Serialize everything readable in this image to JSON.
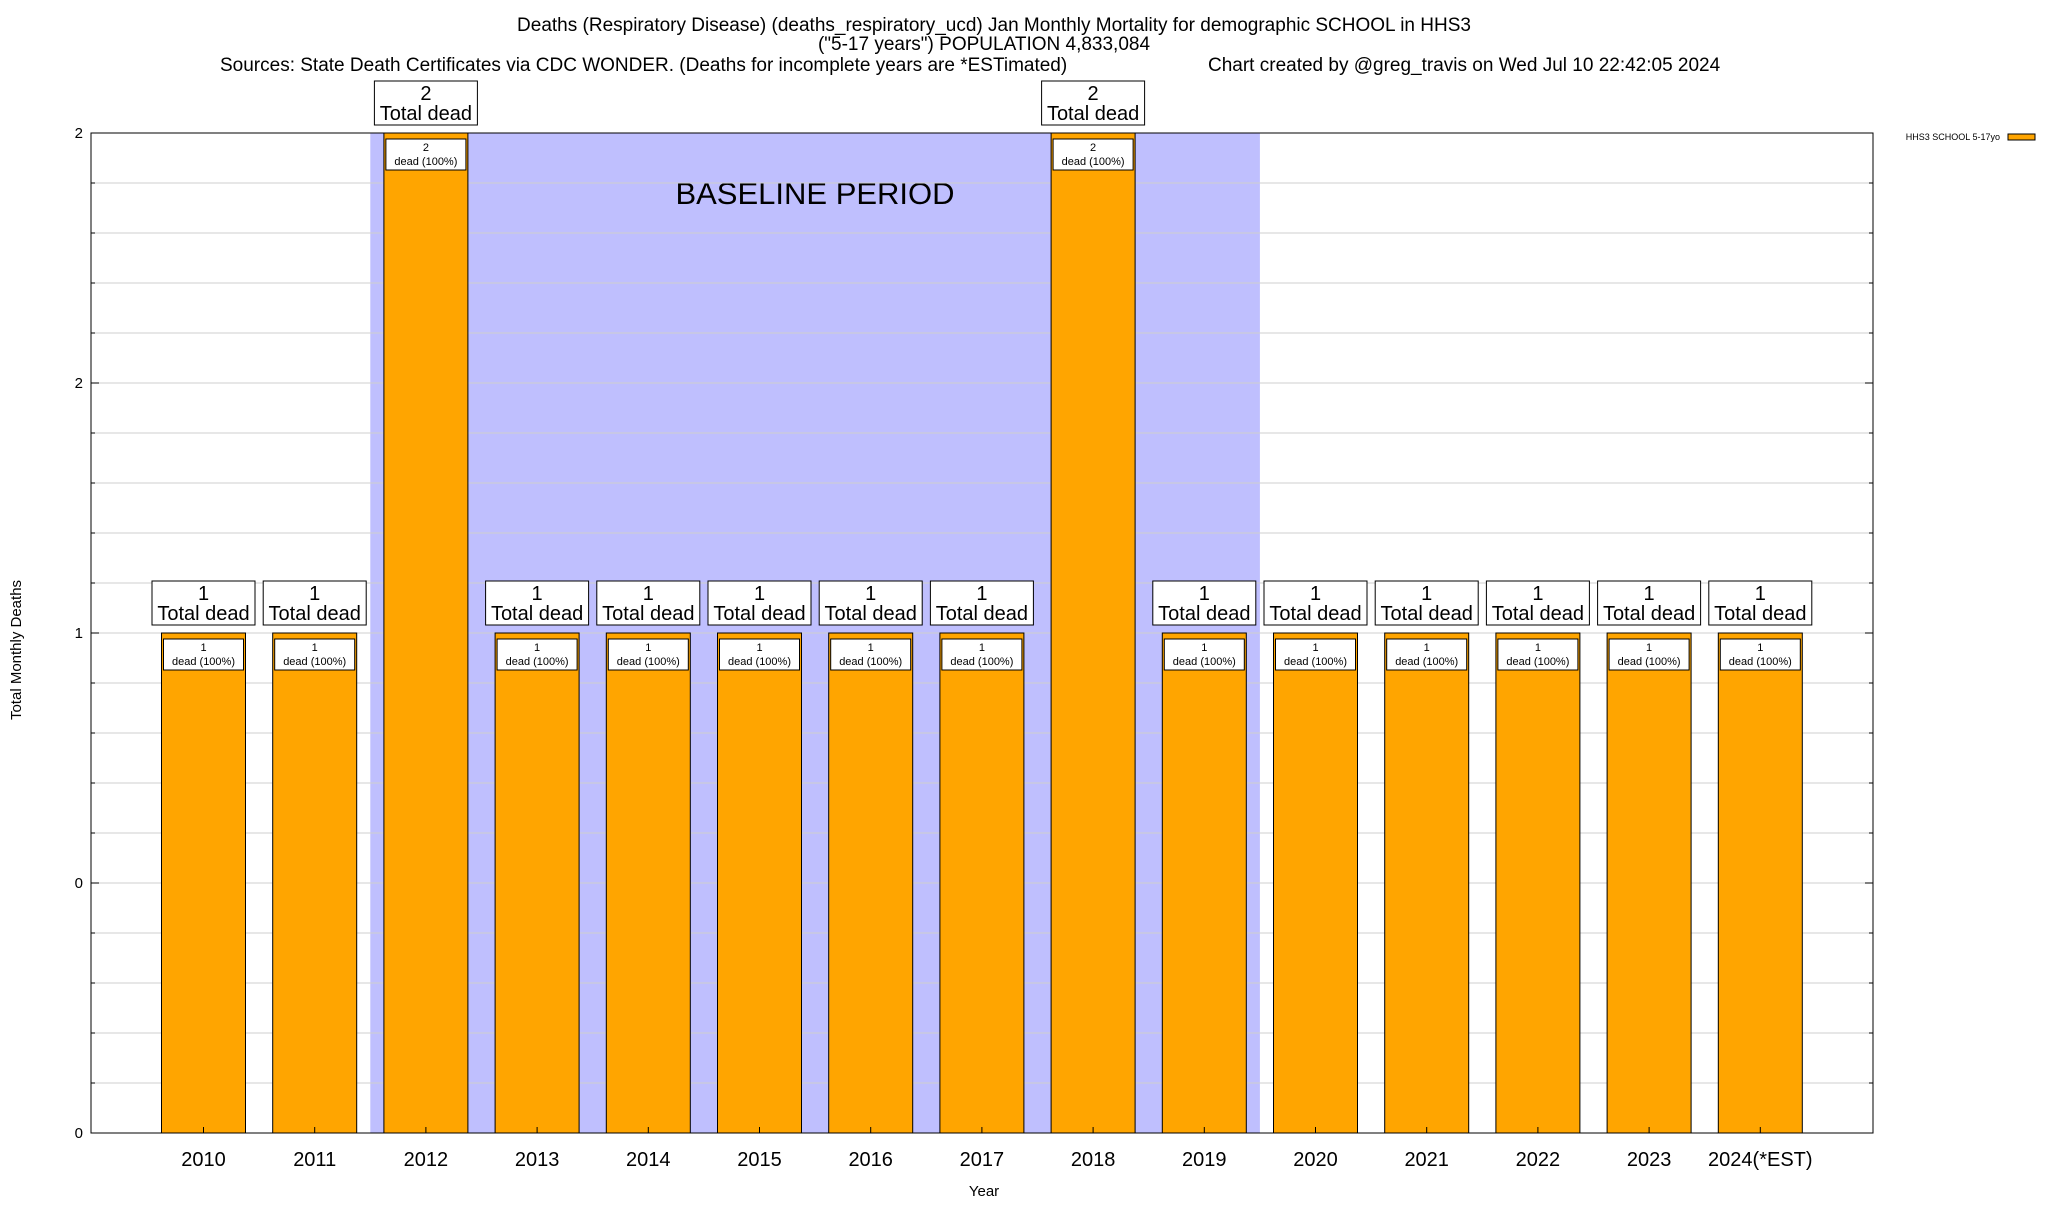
{
  "chart_data": {
    "type": "bar",
    "title_lines": [
      "Deaths (Respiratory Disease) (deaths_respiratory_ucd) Jan Monthly Mortality for demographic SCHOOL in HHS3",
      "(\"5-17 years\") POPULATION 4,833,084"
    ],
    "sources": "Sources: State Death Certificates via CDC WONDER. (Deaths for incomplete years are *ESTimated)",
    "credit": "Chart created by @greg_travis on Wed Jul 10 22:42:05 2024",
    "xlabel": "Year",
    "ylabel": "Total Monthly Deaths",
    "ylim": [
      0,
      2
    ],
    "ytick_values": [
      0,
      0.5,
      1,
      1.5,
      2
    ],
    "ytick_labels": [
      "0",
      "0",
      "1",
      "2",
      "2"
    ],
    "grid": true,
    "categories": [
      "2010",
      "2011",
      "2012",
      "2013",
      "2014",
      "2015",
      "2016",
      "2017",
      "2018",
      "2019",
      "2020",
      "2021",
      "2022",
      "2023",
      "2024(*EST)"
    ],
    "series": [
      {
        "name": "HHS3 SCHOOL 5-17yo",
        "color": "#ffa500",
        "values": [
          1,
          1,
          2,
          1,
          1,
          1,
          1,
          1,
          2,
          1,
          1,
          1,
          1,
          1,
          1
        ]
      }
    ],
    "total_labels": [
      "1",
      "1",
      "2",
      "1",
      "1",
      "1",
      "1",
      "1",
      "2",
      "1",
      "1",
      "1",
      "1",
      "1",
      "1"
    ],
    "total_suffix": "Total dead",
    "inner_labels": [
      "1",
      "1",
      "2",
      "1",
      "1",
      "1",
      "1",
      "1",
      "2",
      "1",
      "1",
      "1",
      "1",
      "1",
      "1"
    ],
    "inner_suffix": "dead (100%)",
    "baseline": {
      "label": "BASELINE PERIOD",
      "from_category": "2012",
      "to_category": "2019",
      "color": "#bfbffe"
    },
    "legend": {
      "label": "HHS3 SCHOOL 5-17yo",
      "position": "top-right"
    }
  }
}
